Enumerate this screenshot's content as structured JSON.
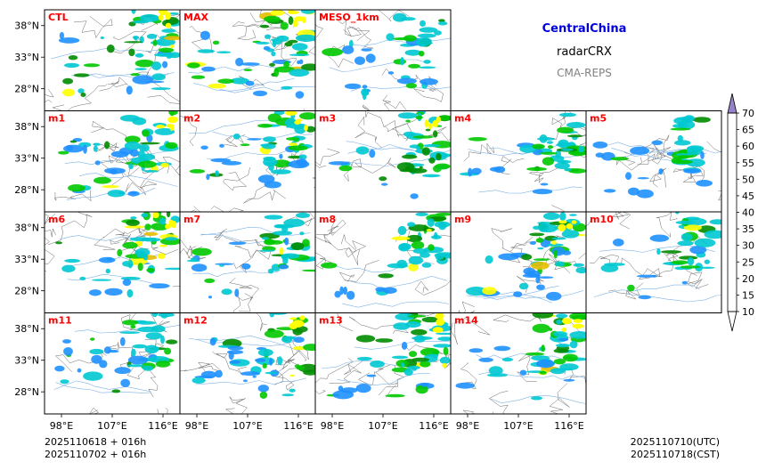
{
  "title": {
    "region": "CentralChina",
    "variable": "radarCRX",
    "system": "CMA-REPS",
    "region_color": "#0000dd",
    "system_color": "#808080"
  },
  "footer": {
    "init_line_utc": "2025110618  +  016h",
    "init_line_cst": "2025110702  +  016h",
    "valid_utc": "2025110710(UTC)",
    "valid_cst": "2025110718(CST)"
  },
  "chart_data": {
    "type": "heatmap",
    "description_panels": "Composite radar reflectivity small-multiples grid",
    "panels": [
      {
        "label": "CTL",
        "row": 0,
        "col": 0,
        "intensity": 0.9
      },
      {
        "label": "MAX",
        "row": 0,
        "col": 1,
        "intensity": 1.0
      },
      {
        "label": "MESO_1km",
        "row": 0,
        "col": 2,
        "intensity": 0.6
      },
      {
        "label": "m1",
        "row": 1,
        "col": 0,
        "intensity": 0.9
      },
      {
        "label": "m2",
        "row": 1,
        "col": 1,
        "intensity": 0.85
      },
      {
        "label": "m3",
        "row": 1,
        "col": 2,
        "intensity": 0.8
      },
      {
        "label": "m4",
        "row": 1,
        "col": 3,
        "intensity": 0.7
      },
      {
        "label": "m5",
        "row": 1,
        "col": 4,
        "intensity": 0.5
      },
      {
        "label": "m6",
        "row": 2,
        "col": 0,
        "intensity": 0.9
      },
      {
        "label": "m7",
        "row": 2,
        "col": 1,
        "intensity": 0.75
      },
      {
        "label": "m8",
        "row": 2,
        "col": 2,
        "intensity": 0.7
      },
      {
        "label": "m9",
        "row": 2,
        "col": 3,
        "intensity": 0.85
      },
      {
        "label": "m10",
        "row": 2,
        "col": 4,
        "intensity": 0.55
      },
      {
        "label": "m11",
        "row": 3,
        "col": 0,
        "intensity": 0.7
      },
      {
        "label": "m12",
        "row": 3,
        "col": 1,
        "intensity": 0.8
      },
      {
        "label": "m13",
        "row": 3,
        "col": 2,
        "intensity": 0.8
      },
      {
        "label": "m14",
        "row": 3,
        "col": 3,
        "intensity": 0.8
      }
    ],
    "y_ticks": [
      "38°N",
      "33°N",
      "28°N"
    ],
    "y_tick_values": [
      38,
      33,
      28
    ],
    "y_range": [
      24.5,
      40.5
    ],
    "x_ticks": [
      "98°E",
      "107°E",
      "116°E"
    ],
    "x_tick_values": [
      98,
      107,
      116
    ],
    "x_range": [
      95,
      119
    ],
    "colorbar": {
      "levels": [
        10,
        15,
        20,
        25,
        30,
        35,
        40,
        45,
        50,
        55,
        60,
        65,
        70
      ],
      "labels": [
        "10",
        "15",
        "20",
        "25",
        "30",
        "35",
        "40",
        "45",
        "50",
        "55",
        "60",
        "65",
        "70"
      ],
      "colors": [
        "#1e90ff",
        "#00c8d2",
        "#00c800",
        "#008c00",
        "#ffff00",
        "#e6be00",
        "#ff9600",
        "#ff0000",
        "#dc0000",
        "#be0000",
        "#ff00ff",
        "#a000c8",
        "#9682c8"
      ],
      "under_color": "#ffffff",
      "over_color": "#9682c8"
    },
    "panel_label_color": "#ff0000"
  }
}
